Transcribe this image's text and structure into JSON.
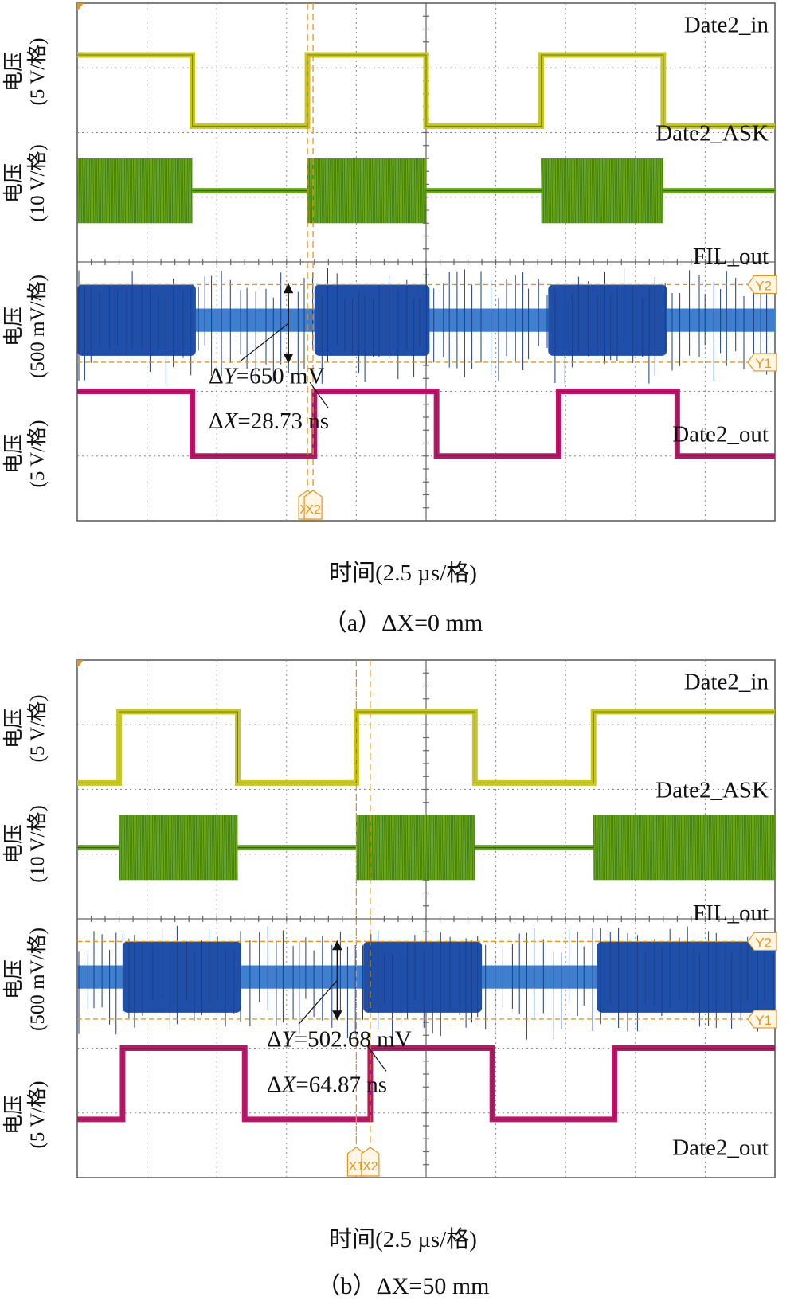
{
  "chart_data": [
    {
      "type": "line",
      "panel_caption": "（a）ΔX=0 mm",
      "xlabel": "时间(2.5 µs/格)",
      "ylabels": [
        {
          "line1": "电压",
          "line2": "(5 V/格)"
        },
        {
          "line1": "电压",
          "line2": "(10 V/格)"
        },
        {
          "line1": "电压",
          "line2": "(500 mV/格)"
        },
        {
          "line1": "电压",
          "line2": "(5 V/格)"
        }
      ],
      "grid": true,
      "x_divisions": 10,
      "y_divisions": 8,
      "series": [
        {
          "name": "Date2_in",
          "color": "#c8c81e",
          "kind": "digital",
          "high_div": 7.2,
          "low_div": 6.1,
          "transitions": [
            0.0,
            1.65,
            3.3,
            5.0,
            6.65,
            8.4,
            10.0
          ],
          "start_high": true
        },
        {
          "name": "Date2_ASK",
          "color": "#6aa51c",
          "kind": "ask",
          "center_div": 5.1,
          "amp_div": 0.5,
          "bursts": [
            [
              0.0,
              1.65
            ],
            [
              3.3,
              5.0
            ],
            [
              6.65,
              8.4
            ]
          ]
        },
        {
          "name": "FIL_out",
          "color": "#1f4fa8",
          "kind": "filtered",
          "center_div": 3.1,
          "amp_div": 0.55,
          "low_amp_div": 0.18,
          "bursts": [
            [
              0.0,
              1.7
            ],
            [
              3.4,
              5.05
            ],
            [
              6.75,
              8.45
            ]
          ]
        },
        {
          "name": "Date2_out",
          "color": "#c0146a",
          "kind": "digital",
          "high_div": 2.0,
          "low_div": 1.0,
          "transitions": [
            0.0,
            1.65,
            3.4,
            5.15,
            6.9,
            8.6,
            10.0
          ],
          "start_high": true
        }
      ],
      "cursors_x": [
        {
          "label": "X1",
          "x_div": 3.3
        },
        {
          "label": "X2",
          "x_div": 3.38
        }
      ],
      "cursors_y": [
        {
          "label": "Y2",
          "y_div": 3.65
        },
        {
          "label": "Y1",
          "y_div": 2.45
        }
      ],
      "annotations": [
        {
          "prefix": "Δ",
          "var": "Y",
          "value": "=650 mV"
        },
        {
          "prefix": "Δ",
          "var": "X",
          "value": "=28.73 ns"
        }
      ]
    },
    {
      "type": "line",
      "panel_caption": "（b）ΔX=50 mm",
      "xlabel": "时间(2.5 µs/格)",
      "ylabels": [
        {
          "line1": "电压",
          "line2": "(5 V/格)"
        },
        {
          "line1": "电压",
          "line2": "(10 V/格)"
        },
        {
          "line1": "电压",
          "line2": "(500 mV/格)"
        },
        {
          "line1": "电压",
          "line2": "(5 V/格)"
        }
      ],
      "grid": true,
      "x_divisions": 10,
      "y_divisions": 8,
      "series": [
        {
          "name": "Date2_in",
          "color": "#c8c81e",
          "kind": "digital",
          "high_div": 7.2,
          "low_div": 6.1,
          "transitions": [
            0.0,
            0.6,
            2.3,
            4.0,
            5.7,
            7.4,
            10.0
          ],
          "start_high": false
        },
        {
          "name": "Date2_ASK",
          "color": "#6aa51c",
          "kind": "ask",
          "center_div": 5.1,
          "amp_div": 0.5,
          "bursts": [
            [
              0.6,
              2.3
            ],
            [
              4.0,
              5.7
            ],
            [
              7.4,
              10.0
            ]
          ]
        },
        {
          "name": "FIL_out",
          "color": "#1f4fa8",
          "kind": "filtered",
          "center_div": 3.1,
          "amp_div": 0.55,
          "low_amp_div": 0.18,
          "bursts": [
            [
              0.65,
              2.35
            ],
            [
              4.1,
              5.8
            ],
            [
              7.45,
              10.0
            ]
          ]
        },
        {
          "name": "Date2_out",
          "color": "#c0146a",
          "kind": "digital",
          "high_div": 2.0,
          "low_div": 0.9,
          "transitions": [
            0.0,
            0.65,
            2.4,
            4.2,
            5.95,
            7.7,
            10.0
          ],
          "start_high": false
        }
      ],
      "cursors_x": [
        {
          "label": "X1",
          "x_div": 4.0
        },
        {
          "label": "X2",
          "x_div": 4.2
        }
      ],
      "cursors_y": [
        {
          "label": "Y2",
          "y_div": 3.65
        },
        {
          "label": "Y1",
          "y_div": 2.45
        }
      ],
      "annotations": [
        {
          "prefix": "Δ",
          "var": "Y",
          "value": "=502.68 mV"
        },
        {
          "prefix": "Δ",
          "var": "X",
          "value": "=64.87 ns"
        }
      ]
    }
  ]
}
